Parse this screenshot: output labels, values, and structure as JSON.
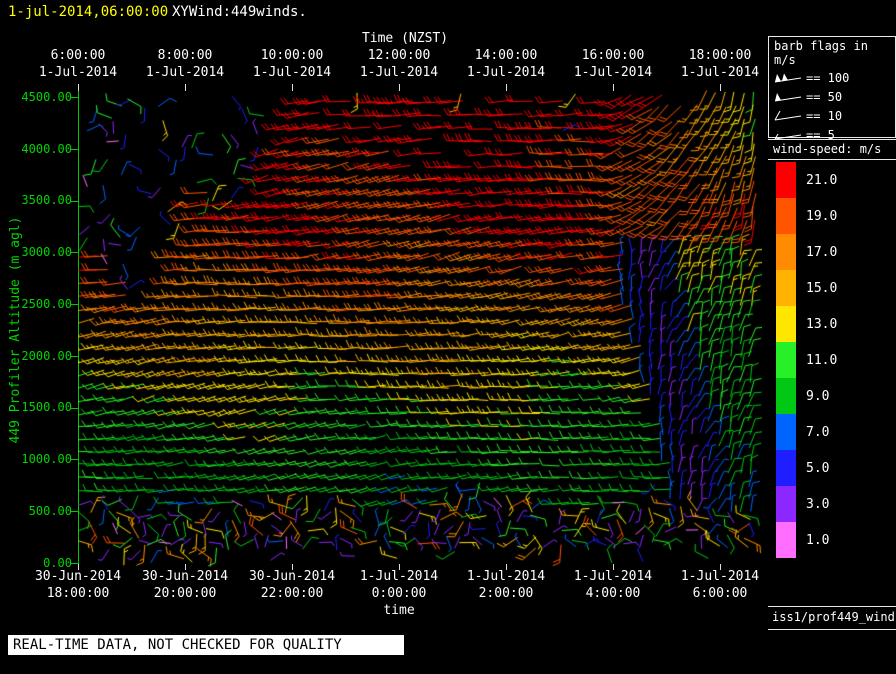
{
  "header": {
    "timestamp": "1-jul-2014,06:00:00",
    "timestamp_color": "#ffff00",
    "title": "XYWind:449winds."
  },
  "footer": {
    "quality_note": "REAL-TIME DATA, NOT CHECKED FOR QUALITY",
    "source_label": "iss1/prof449_winds"
  },
  "chart_data": {
    "type": "wind-barb-time-height",
    "title": "XYWind:449winds.",
    "x_axis_top": {
      "label": "Time (NZST)",
      "ticks": [
        {
          "time": "6:00:00",
          "date": "1-Jul-2014"
        },
        {
          "time": "8:00:00",
          "date": "1-Jul-2014"
        },
        {
          "time": "10:00:00",
          "date": "1-Jul-2014"
        },
        {
          "time": "12:00:00",
          "date": "1-Jul-2014"
        },
        {
          "time": "14:00:00",
          "date": "1-Jul-2014"
        },
        {
          "time": "16:00:00",
          "date": "1-Jul-2014"
        },
        {
          "time": "18:00:00",
          "date": "1-Jul-2014"
        }
      ]
    },
    "x_axis_bottom": {
      "label": "time",
      "ticks": [
        {
          "date": "30-Jun-2014",
          "time": "18:00:00"
        },
        {
          "date": "30-Jun-2014",
          "time": "20:00:00"
        },
        {
          "date": "30-Jun-2014",
          "time": "22:00:00"
        },
        {
          "date": "1-Jul-2014",
          "time": "0:00:00"
        },
        {
          "date": "1-Jul-2014",
          "time": "2:00:00"
        },
        {
          "date": "1-Jul-2014",
          "time": "4:00:00"
        },
        {
          "date": "1-Jul-2014",
          "time": "6:00:00"
        }
      ]
    },
    "y_axis": {
      "label": "449 Profiler Altitude (m agl)",
      "color": "#00c800",
      "range_m": [
        0,
        4500
      ],
      "ticks": [
        "4500.00",
        "4000.00",
        "3500.00",
        "3000.00",
        "2500.00",
        "2000.00",
        "1500.00",
        "1000.00",
        "500.00",
        "0.00"
      ]
    },
    "barb_legend": {
      "title": "barb flags in m/s",
      "entries": [
        {
          "symbol": "pennant-double",
          "label": "== 100"
        },
        {
          "symbol": "pennant",
          "label": "== 50"
        },
        {
          "symbol": "full-barb",
          "label": "== 10"
        },
        {
          "symbol": "half-barb",
          "label": "== 5"
        }
      ]
    },
    "colorbar": {
      "title": "wind-speed: m/s",
      "stops": [
        {
          "value": 21.0,
          "label": "21.0",
          "color": "#fb0000"
        },
        {
          "value": 19.0,
          "label": "19.0",
          "color": "#ff5400"
        },
        {
          "value": 17.0,
          "label": "17.0",
          "color": "#ff8c00"
        },
        {
          "value": 15.0,
          "label": "15.0",
          "color": "#ffb200"
        },
        {
          "value": 13.0,
          "label": "13.0",
          "color": "#ffe600"
        },
        {
          "value": 11.0,
          "label": "11.0",
          "color": "#28f028"
        },
        {
          "value": 9.0,
          "label": "9.0",
          "color": "#00c814"
        },
        {
          "value": 7.0,
          "label": "7.0",
          "color": "#0064ff"
        },
        {
          "value": 5.0,
          "label": "5.0",
          "color": "#1e1eff"
        },
        {
          "value": 3.0,
          "label": "3.0",
          "color": "#8c28ff"
        },
        {
          "value": 1.0,
          "label": "1.0",
          "color": "#ff6eff"
        }
      ]
    },
    "field": {
      "seed": 20140701,
      "cols": 67,
      "rows": 36,
      "alt_top_m": 4450,
      "alt_step_m": 125,
      "time_start_nzst": "6:00:00",
      "time_end_nzst": "18:00:00",
      "description": "Coherent westerly flow: ~9-13 m/s (green) below 2200 m, 13-17 m/s (yellow/orange) 2200-2700 m, 17-21 m/s (red) above ~2700 m through the day; around 16:00-17:00 NZST a wind shift brings light 1-7 m/s (purple/blue) winds between ~700-3000 m, followed by 7-13 m/s rotated (near-vertical barb) flow; speeds aloft weaken after ~17:00. Random multicolour noise barbs above the signal top and below ~600 m (unchecked gates)."
    }
  }
}
